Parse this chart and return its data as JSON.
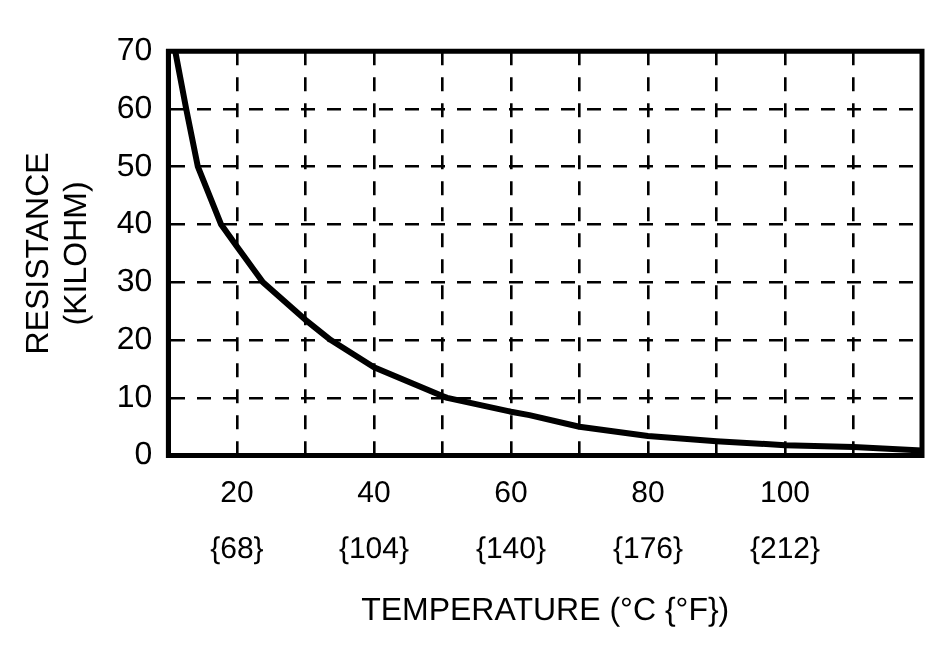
{
  "chart_data": {
    "type": "line",
    "xlabel": "TEMPERATURE (°C {°F})",
    "ylabel": "RESISTANCE\n(KILOHM)",
    "series": [
      {
        "color": "#000000",
        "x": [
          11.0,
          12.6,
          14.3,
          17.7,
          20,
          23.8,
          30,
          33.7,
          40,
          50,
          50.7,
          60,
          62.7,
          70,
          80,
          90,
          100,
          110,
          120
        ],
        "values": [
          70,
          60,
          50,
          40,
          36.2,
          30,
          23.5,
          20,
          15.3,
          10.3,
          10,
          7.6,
          7.0,
          5.0,
          3.4,
          2.5,
          1.8,
          1.5,
          0.9
        ]
      }
    ],
    "xlim": [
      10,
      120
    ],
    "xticks": [
      20,
      {
        "value": 30,
        "label": null
      },
      40,
      {
        "value": 50,
        "label": null
      },
      60,
      {
        "value": 70,
        "label": null
      },
      80,
      {
        "value": 90,
        "label": null
      },
      100,
      {
        "value": 110,
        "label": null
      }
    ],
    "x2lim": [
      50,
      248
    ],
    "x2ticks": [
      {
        "value": 68,
        "label": "{68}"
      },
      {
        "value": 104,
        "label": "{104}"
      },
      {
        "value": 140,
        "label": "{140}"
      },
      {
        "value": 176,
        "label": "{176}"
      },
      {
        "value": 212,
        "label": "{212}"
      }
    ],
    "ylim": [
      0,
      70
    ],
    "yticks": [
      0,
      10,
      20,
      30,
      40,
      50,
      60,
      70
    ],
    "grid": true,
    "legend": false,
    "marker": "none",
    "line_style": "solid"
  }
}
